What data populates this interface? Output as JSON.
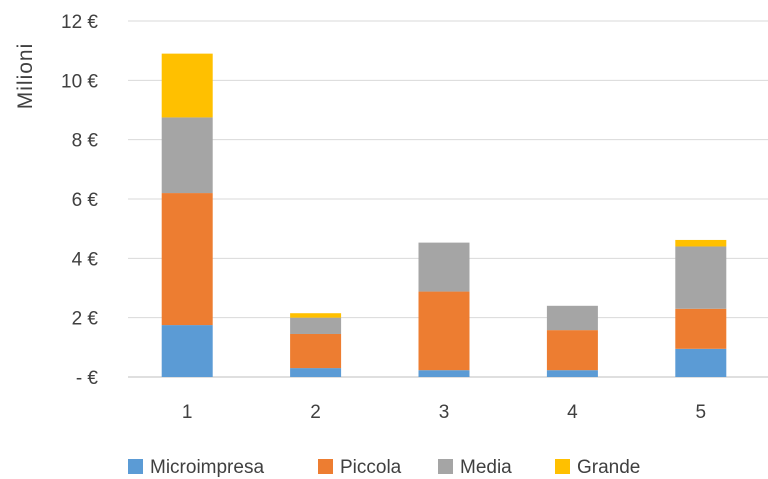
{
  "chart_data": {
    "type": "bar",
    "stacked": true,
    "title": "",
    "xlabel": "",
    "ylabel": "Milioni",
    "categories": [
      "1",
      "2",
      "3",
      "4",
      "5"
    ],
    "ylim": [
      0,
      12
    ],
    "yticks": [
      0,
      2,
      4,
      6,
      8,
      10,
      12
    ],
    "ytick_labels": [
      "-  €",
      "2 €",
      "4 €",
      "6 €",
      "8 €",
      "10 €",
      "12 €"
    ],
    "grid": true,
    "legend_position": "bottom",
    "series": [
      {
        "name": "Microimpresa",
        "color": "#5b9bd5",
        "values": [
          1.75,
          0.3,
          0.23,
          0.23,
          0.95
        ]
      },
      {
        "name": "Piccola",
        "color": "#ed7d31",
        "values": [
          4.45,
          1.15,
          2.65,
          1.35,
          1.35
        ]
      },
      {
        "name": "Media",
        "color": "#a5a5a5",
        "values": [
          2.55,
          0.55,
          1.65,
          0.82,
          2.1
        ]
      },
      {
        "name": "Grande",
        "color": "#ffc000",
        "values": [
          2.15,
          0.15,
          0.0,
          0.0,
          0.22
        ]
      }
    ]
  }
}
